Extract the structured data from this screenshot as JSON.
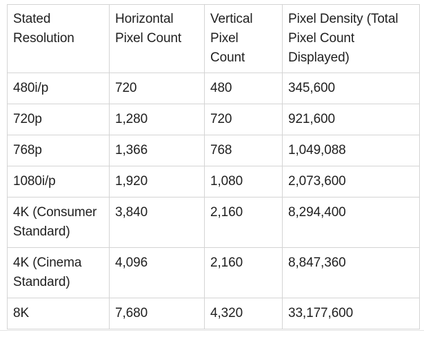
{
  "table": {
    "headers": [
      "Stated Resolution",
      "Horizontal Pixel Count",
      "Vertical Pixel Count",
      "Pixel Density (Total Pixel Count Displayed)"
    ],
    "rows": [
      [
        "480i/p",
        "720",
        "480",
        "345,600"
      ],
      [
        "720p",
        "1,280",
        "720",
        "921,600"
      ],
      [
        "768p",
        "1,366",
        "768",
        "1,049,088"
      ],
      [
        "1080i/p",
        "1,920",
        "1,080",
        "2,073,600"
      ],
      [
        "4K (Consumer Standard)",
        "3,840",
        "2,160",
        "8,294,400"
      ],
      [
        "4K (Cinema Standard)",
        "4,096",
        "2,160",
        "8,847,360"
      ],
      [
        "8K",
        "7,680",
        "4,320",
        "33,177,600"
      ]
    ]
  }
}
